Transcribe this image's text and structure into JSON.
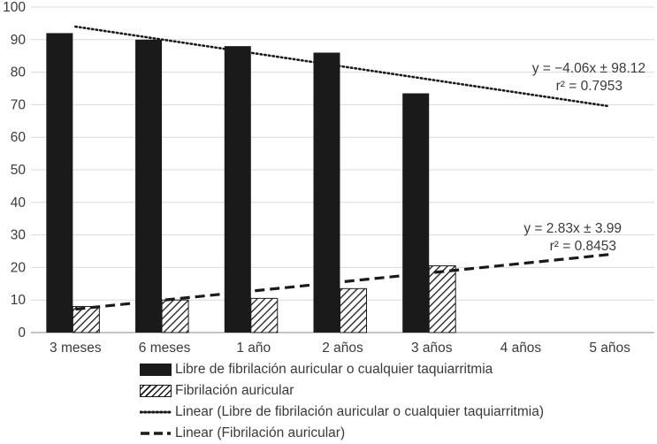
{
  "chart_data": {
    "type": "bar",
    "categories": [
      "3 meses",
      "6 meses",
      "1 año",
      "2 años",
      "3 años",
      "4 años",
      "5 años"
    ],
    "ylim": [
      0,
      100
    ],
    "yticks": [
      0,
      10,
      20,
      30,
      40,
      50,
      60,
      70,
      80,
      90,
      100
    ],
    "grid": true,
    "legend_position": "bottom",
    "series": [
      {
        "name": "Libre de fibrilación auricular o cualquier taquiarritmia",
        "style": "solid",
        "color": "#1a1a1a",
        "values": [
          92,
          90,
          88,
          86,
          73.5,
          null,
          null
        ]
      },
      {
        "name": "Fibrilación auricular",
        "style": "hatched",
        "color": "#1a1a1a",
        "values": [
          8,
          10,
          10.5,
          13.5,
          20.5,
          null,
          null
        ]
      }
    ],
    "trendlines": [
      {
        "name": "Linear (Libre de fibrilación auricular o cualquier taquiarritmia)",
        "style": "dotted",
        "x_range": [
          "3 meses",
          "5 años"
        ],
        "y_range": [
          94,
          69.5
        ],
        "equation": "y = −4.06x ± 98.12",
        "r2": "r² = 0.7953"
      },
      {
        "name": "Linear (Fibrilación auricular)",
        "style": "dashed",
        "x_range": [
          "3 meses",
          "5 años"
        ],
        "y_range": [
          7.2,
          24
        ],
        "equation": "y = 2.83x ± 3.99",
        "r2": "r² = 0.8453"
      }
    ]
  }
}
